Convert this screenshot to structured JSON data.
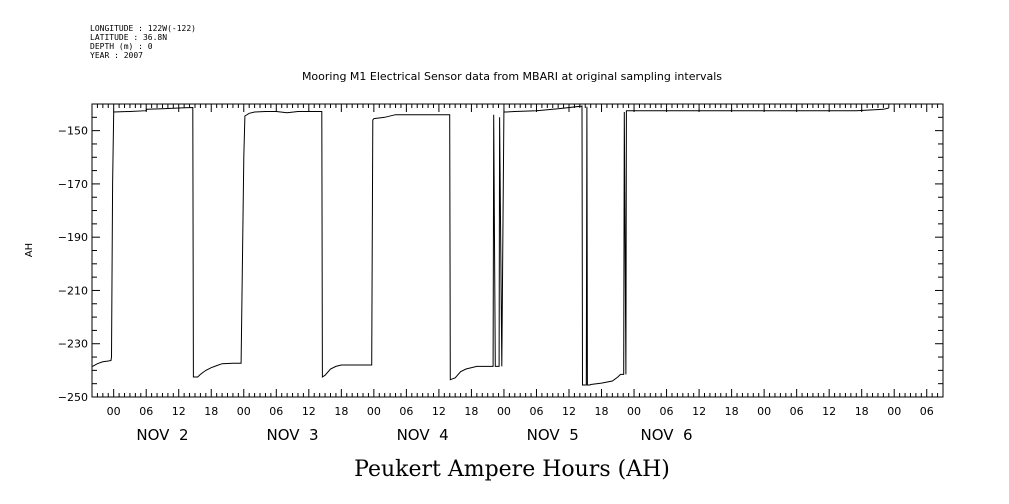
{
  "header": {
    "lines": [
      "LONGITUDE : 122W(-122)",
      "LATITUDE : 36.8N",
      "DEPTH (m) : 0",
      "YEAR : 2007"
    ]
  },
  "chart_data": {
    "type": "line",
    "title": "Mooring M1 Electrical Sensor data from MBARI at original sampling intervals",
    "xlabel": "Peukert Ampere Hours (AH)",
    "ylabel": "AH",
    "xlim": [
      -4,
      153
    ],
    "ylim": [
      -250,
      -140
    ],
    "y_ticks": [
      -150,
      -170,
      -190,
      -210,
      -230,
      -250
    ],
    "x_ticks": [
      {
        "h": 0,
        "label": "00"
      },
      {
        "h": 6,
        "label": "06"
      },
      {
        "h": 12,
        "label": "12"
      },
      {
        "h": 18,
        "label": "18"
      },
      {
        "h": 24,
        "label": "00"
      },
      {
        "h": 30,
        "label": "06"
      },
      {
        "h": 36,
        "label": "12"
      },
      {
        "h": 42,
        "label": "18"
      },
      {
        "h": 48,
        "label": "00"
      },
      {
        "h": 54,
        "label": "06"
      },
      {
        "h": 60,
        "label": "12"
      },
      {
        "h": 66,
        "label": "18"
      },
      {
        "h": 72,
        "label": "00"
      },
      {
        "h": 78,
        "label": "06"
      },
      {
        "h": 84,
        "label": "12"
      },
      {
        "h": 90,
        "label": "18"
      },
      {
        "h": 96,
        "label": "00"
      },
      {
        "h": 102,
        "label": "06"
      },
      {
        "h": 108,
        "label": "12"
      },
      {
        "h": 114,
        "label": "18"
      },
      {
        "h": 120,
        "label": "00"
      },
      {
        "h": 126,
        "label": "06"
      },
      {
        "h": 132,
        "label": "12"
      },
      {
        "h": 138,
        "label": "18"
      },
      {
        "h": 144,
        "label": "00"
      },
      {
        "h": 150,
        "label": "06"
      }
    ],
    "day_labels": [
      {
        "h": 9,
        "label": "NOV  2"
      },
      {
        "h": 33,
        "label": "NOV  3"
      },
      {
        "h": 57,
        "label": "NOV  4"
      },
      {
        "h": 81,
        "label": "NOV  5"
      },
      {
        "h": 102,
        "label": "NOV  6"
      }
    ],
    "series": [
      {
        "x": [
          -3.9,
          -3.0,
          -2.0,
          -1.0,
          -0.5,
          -0.4,
          -0.2,
          0.0,
          3.0,
          6.0,
          6.1,
          9.0,
          12.0,
          14.6,
          14.7,
          15.5,
          16.0,
          17.0,
          18.0,
          19.0,
          20.0,
          22.0,
          23.5,
          24.0,
          24.2,
          25.0,
          26.0,
          28.0,
          30.0,
          32.0,
          34.0,
          36.0,
          38.4,
          38.5,
          39.0,
          40.0,
          41.0,
          42.0,
          44.0,
          46.0,
          47.6,
          47.8,
          48.0,
          50.0,
          52.0,
          56.0,
          62.0,
          62.1,
          63.0,
          64.0,
          65.0,
          67.0,
          70.0,
          70.1,
          70.4,
          71.1,
          71.2,
          71.6,
          72.0,
          72.3,
          74.0,
          78.0,
          82.0,
          86.4,
          86.5,
          87.2,
          87.3,
          87.4,
          87.6,
          87.9,
          88.0,
          90.0,
          92.0,
          93.0,
          93.5,
          94.1,
          94.2,
          94.5,
          94.6,
          98.0,
          100.0,
          105.0,
          115.0,
          118.0,
          125.0,
          131.0,
          137.0,
          142.0,
          143.0
        ],
        "y": [
          -238.5,
          -237.5,
          -236.8,
          -236.5,
          -236.3,
          -235.0,
          -170.0,
          -143.0,
          -142.8,
          -142.5,
          -142.0,
          -141.8,
          -141.5,
          -141.3,
          -242.5,
          -242.5,
          -241.5,
          -240.0,
          -239.0,
          -238.2,
          -237.5,
          -237.3,
          -237.3,
          -160.0,
          -144.5,
          -143.5,
          -143.0,
          -142.8,
          -142.8,
          -143.3,
          -142.8,
          -142.8,
          -142.8,
          -242.5,
          -241.8,
          -239.5,
          -238.5,
          -238.0,
          -238.0,
          -238.0,
          -238.0,
          -146.0,
          -145.5,
          -145.0,
          -144.0,
          -144.0,
          -144.0,
          -243.5,
          -242.8,
          -240.5,
          -239.5,
          -238.5,
          -238.5,
          -144.0,
          -238.5,
          -238.5,
          -145.0,
          -238.5,
          -143.0,
          -143.0,
          -142.8,
          -142.5,
          -141.8,
          -140.8,
          -245.5,
          -245.5,
          -141.0,
          -245.5,
          -245.5,
          -245.5,
          -245.3,
          -244.8,
          -244.0,
          -242.5,
          -241.5,
          -241.5,
          -143.0,
          -241.5,
          -142.5,
          -142.5,
          -142.5,
          -142.5,
          -142.5,
          -142.5,
          -142.5,
          -142.5,
          -142.5,
          -142.0,
          -141.5
        ]
      }
    ]
  }
}
